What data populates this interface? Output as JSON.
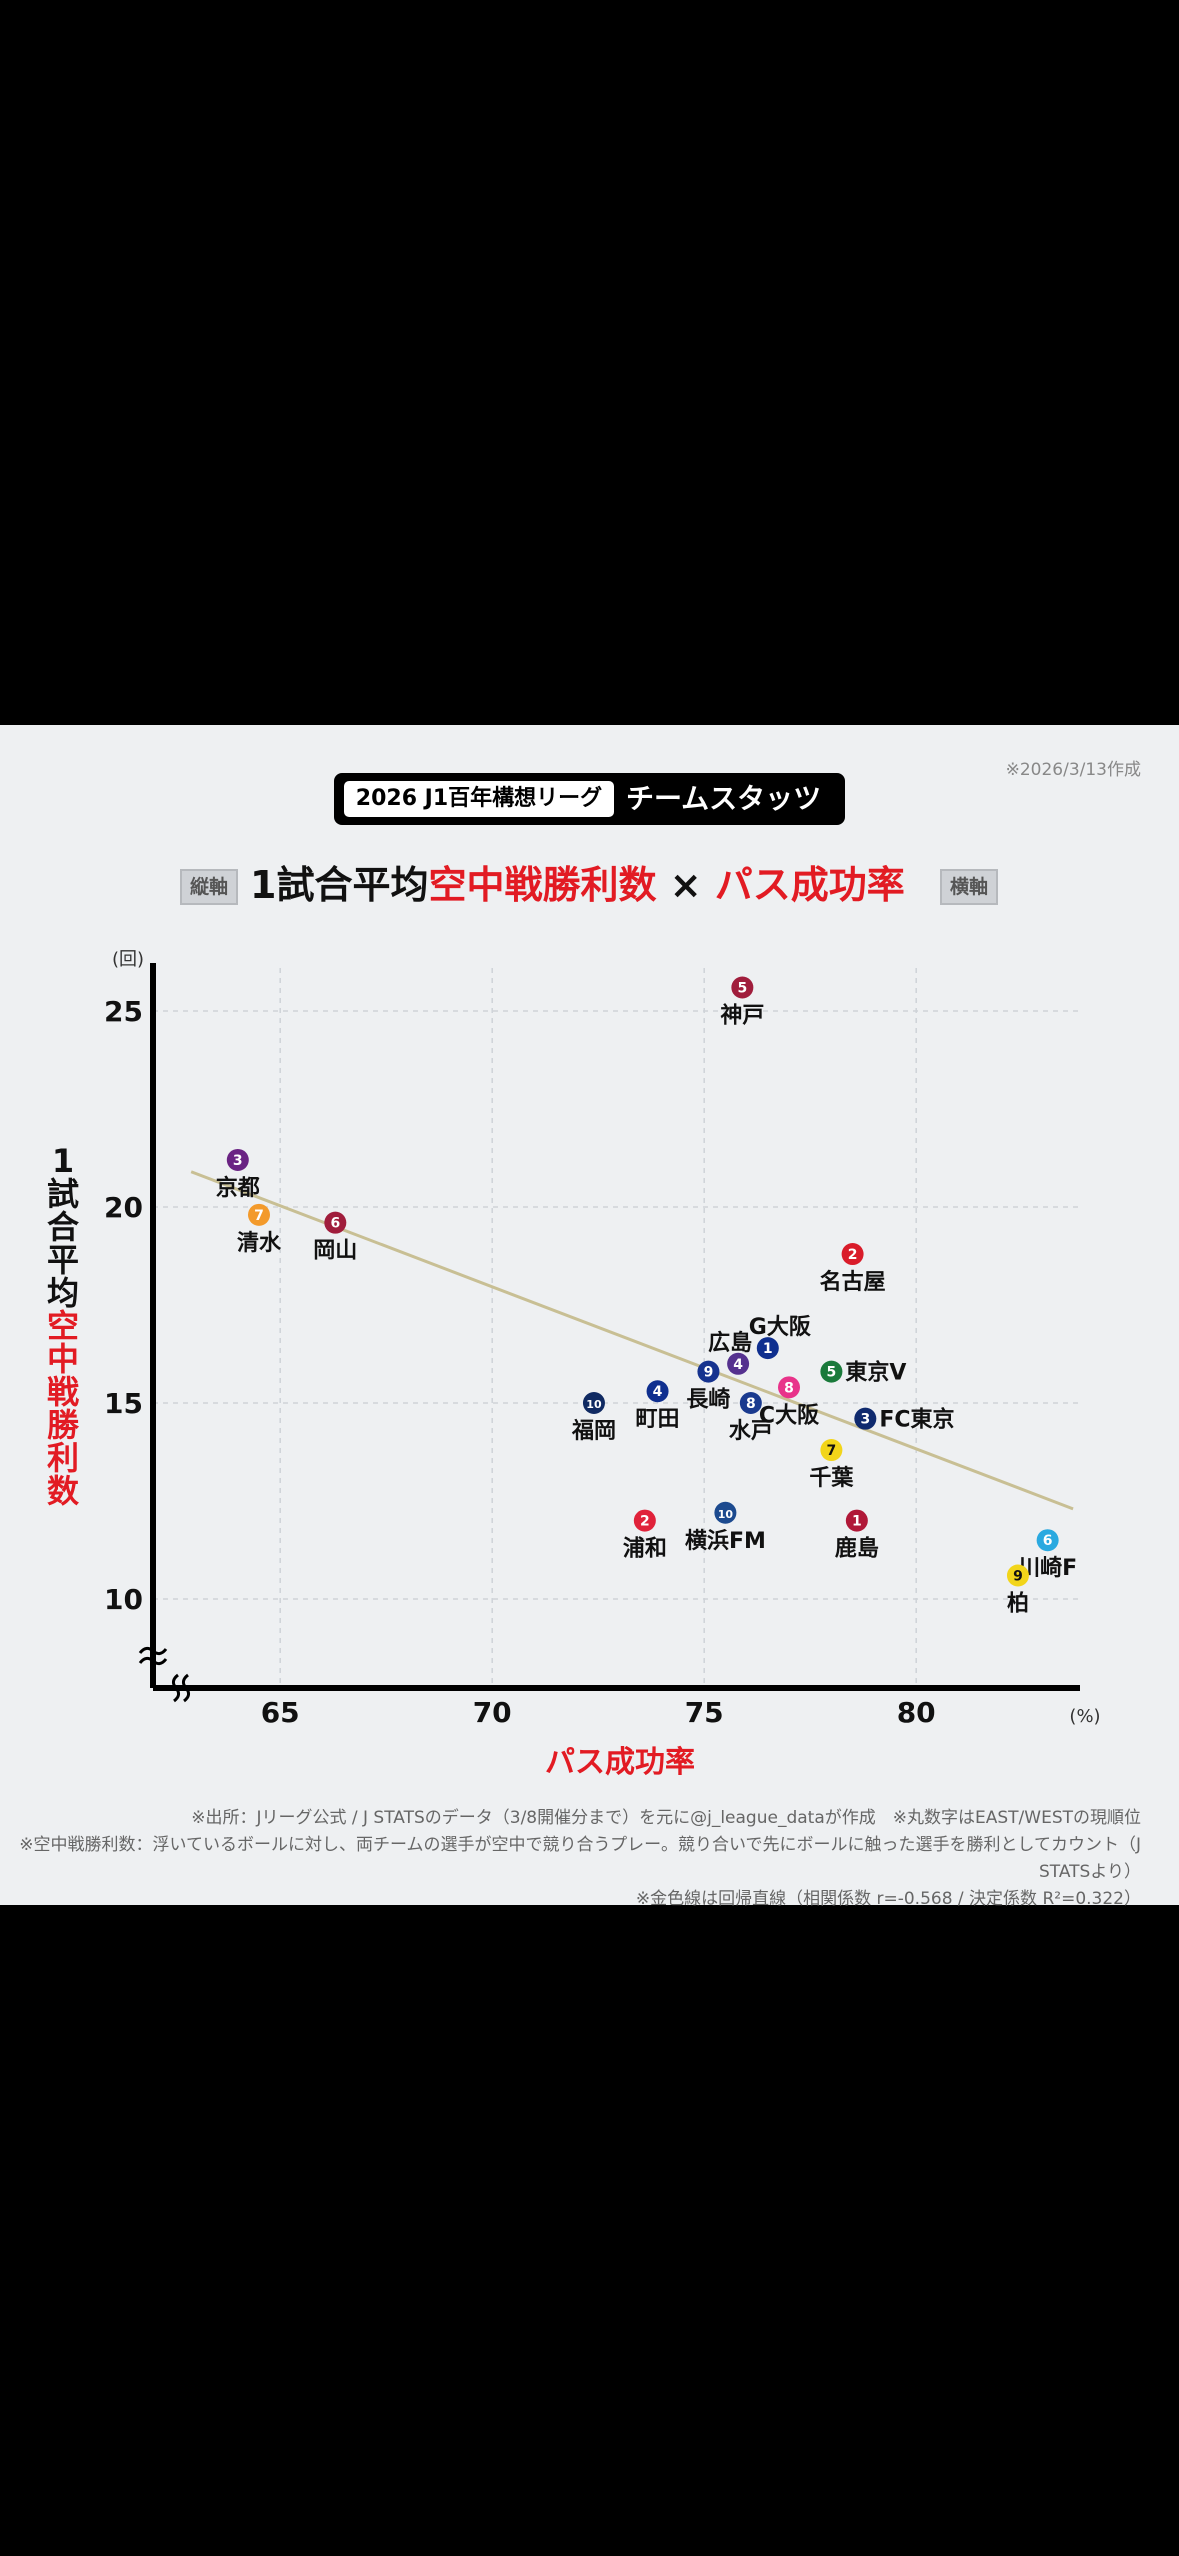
{
  "header": {
    "date": "※2026/3/13作成",
    "title_pill": "2026 J1百年構想リーグ",
    "title_right": "チームスタッツ",
    "tag_vertical": "縦軸",
    "tag_horizontal": "横軸",
    "subtitle_prefix": "1試合平均",
    "subtitle_red1": "空中戦勝利数",
    "subtitle_times": " × ",
    "subtitle_red2": "パス成功率"
  },
  "chart_data": {
    "type": "scatter",
    "xlabel": "パス成功率",
    "ylabel_prefix": [
      "1",
      "試",
      "合",
      "平",
      "均"
    ],
    "ylabel_red": [
      "空",
      "中",
      "戦",
      "勝",
      "利",
      "数"
    ],
    "x_unit": "(%)",
    "y_unit": "(回)",
    "xlim": [
      62,
      84
    ],
    "ylim": [
      7.6,
      26
    ],
    "x_ticks": [
      65,
      70,
      75,
      80
    ],
    "y_ticks": [
      10,
      15,
      20,
      25
    ],
    "grid": true,
    "trendline": {
      "color": "#c8bf94",
      "x": [
        62.9,
        83.7
      ],
      "y": [
        20.9,
        12.3
      ]
    },
    "points": [
      {
        "team": "神戸",
        "rank": "5",
        "x": 75.9,
        "y": 25.6,
        "color": "#a01d3c",
        "label_pos": "below"
      },
      {
        "team": "京都",
        "rank": "3",
        "x": 64.0,
        "y": 21.2,
        "color": "#6a2383",
        "label_pos": "below"
      },
      {
        "team": "清水",
        "rank": "7",
        "x": 64.5,
        "y": 19.8,
        "color": "#f39a2b",
        "label_pos": "below"
      },
      {
        "team": "岡山",
        "rank": "6",
        "x": 66.3,
        "y": 19.6,
        "color": "#a01d3c",
        "label_pos": "below"
      },
      {
        "team": "名古屋",
        "rank": "2",
        "x": 78.5,
        "y": 18.8,
        "color": "#d91c2a",
        "label_pos": "below"
      },
      {
        "team": "G大阪",
        "rank": "1",
        "x": 76.5,
        "y": 16.4,
        "color": "#0f2f8f",
        "label_pos": "above"
      },
      {
        "team": "広島",
        "rank": "4",
        "x": 75.8,
        "y": 16.0,
        "color": "#55318f",
        "label_pos": "aboveleft"
      },
      {
        "team": "東京V",
        "rank": "5",
        "x": 78.0,
        "y": 15.8,
        "color": "#1a7a3b",
        "label_pos": "right"
      },
      {
        "team": "長崎",
        "rank": "9",
        "x": 75.1,
        "y": 15.8,
        "color": "#16338f",
        "label_pos": "below"
      },
      {
        "team": "C大阪",
        "rank": "8",
        "x": 77.0,
        "y": 15.4,
        "color": "#e8338a",
        "label_pos": "below"
      },
      {
        "team": "町田",
        "rank": "4",
        "x": 73.9,
        "y": 15.3,
        "color": "#0f2f8f",
        "label_pos": "below"
      },
      {
        "team": "水戸",
        "rank": "8",
        "x": 76.1,
        "y": 15.0,
        "color": "#1a3a8f",
        "label_pos": "below"
      },
      {
        "team": "福岡",
        "rank": "10",
        "x": 72.4,
        "y": 15.0,
        "color": "#102a62",
        "label_pos": "below"
      },
      {
        "team": "FC東京",
        "rank": "3",
        "x": 78.8,
        "y": 14.6,
        "color": "#0f2a6e",
        "label_pos": "right"
      },
      {
        "team": "千葉",
        "rank": "7",
        "x": 78.0,
        "y": 13.8,
        "color": "#f2d51a",
        "label_pos": "below"
      },
      {
        "team": "横浜FM",
        "rank": "10",
        "x": 75.5,
        "y": 12.2,
        "color": "#1c4a8f",
        "label_pos": "below"
      },
      {
        "team": "浦和",
        "rank": "2",
        "x": 73.6,
        "y": 12.0,
        "color": "#e0223a",
        "label_pos": "below"
      },
      {
        "team": "鹿島",
        "rank": "1",
        "x": 78.6,
        "y": 12.0,
        "color": "#b01838",
        "label_pos": "below"
      },
      {
        "team": "川崎F",
        "rank": "6",
        "x": 83.1,
        "y": 11.5,
        "color": "#2aa9e0",
        "label_pos": "below"
      },
      {
        "team": "柏",
        "rank": "9",
        "x": 82.4,
        "y": 10.6,
        "color": "#f2d51a",
        "label_pos": "below"
      }
    ]
  },
  "notes": [
    "※出所：Jリーグ公式 / J STATSのデータ（3/8開催分まで）を元に@j_league_dataが作成　※丸数字はEAST/WESTの現順位",
    "※空中戦勝利数：浮いているボールに対し、両チームの選手が空中で競り合うプレー。競り合いで先にボールに触った選手を勝利としてカウント（J STATSより）",
    "※金色線は回帰直線（相関係数 r=-0.568 / 決定係数 R²=0.322）"
  ]
}
